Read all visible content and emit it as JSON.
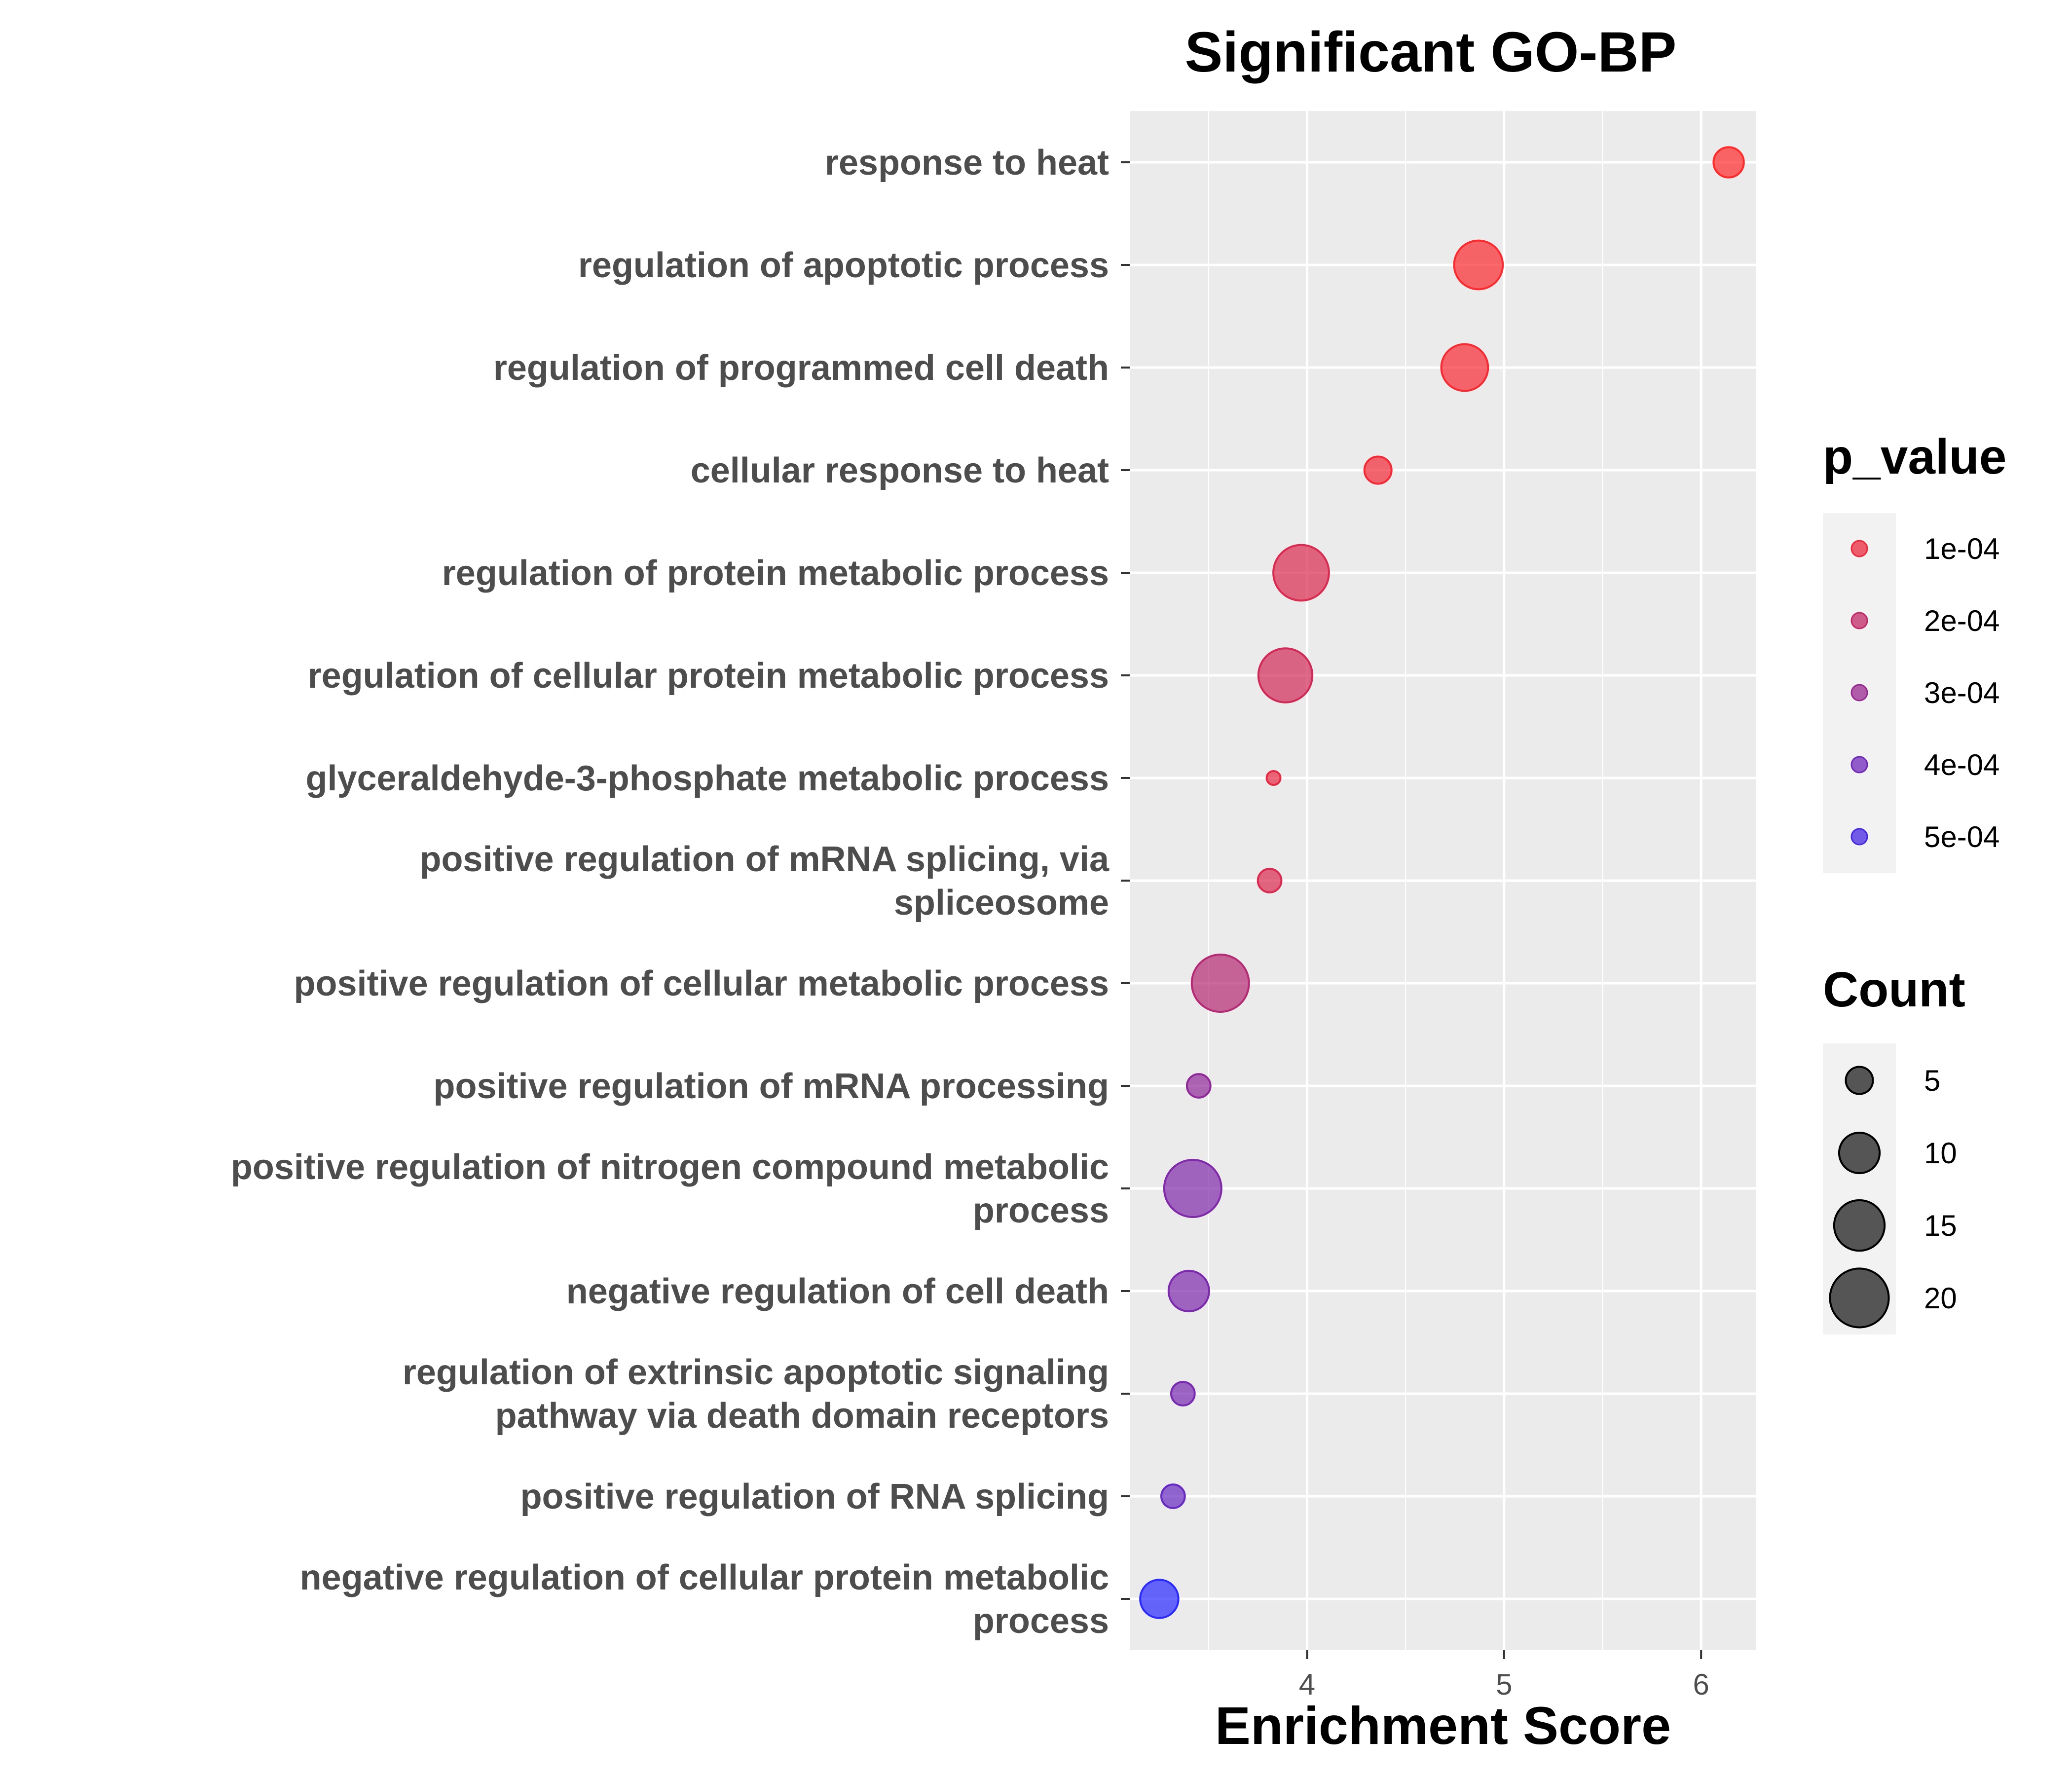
{
  "chart_data": {
    "type": "scatter",
    "title": "Significant GO-BP",
    "xlabel": "Enrichment Score",
    "ylabel": "",
    "xlim": [
      3.1,
      6.28
    ],
    "xticks": [
      4,
      5,
      6
    ],
    "grid": true,
    "legend_placement": "right",
    "categories": [
      "response to heat",
      "regulation of apoptotic process",
      "regulation of programmed cell death",
      "cellular response to heat",
      "regulation of protein metabolic process",
      "regulation of cellular protein metabolic process",
      "glyceraldehyde-3-phosphate metabolic process",
      "positive regulation of mRNA splicing, via spliceosome",
      "positive regulation of cellular metabolic process",
      "positive regulation of mRNA processing",
      "positive regulation of nitrogen compound metabolic process",
      "negative regulation of cell death",
      "regulation of extrinsic apoptotic signaling pathway via death domain receptors",
      "positive regulation of RNA splicing",
      "negative regulation of cellular protein metabolic process"
    ],
    "category_lines": [
      [
        "response to heat"
      ],
      [
        "regulation of apoptotic process"
      ],
      [
        "regulation of programmed cell death"
      ],
      [
        "cellular response to heat"
      ],
      [
        "regulation of protein metabolic process"
      ],
      [
        "regulation of cellular protein metabolic process"
      ],
      [
        "glyceraldehyde-3-phosphate metabolic process"
      ],
      [
        "positive regulation of mRNA splicing, via",
        "spliceosome"
      ],
      [
        "positive regulation of cellular metabolic process"
      ],
      [
        "positive regulation of mRNA processing"
      ],
      [
        "positive regulation of nitrogen compound metabolic",
        "process"
      ],
      [
        "negative regulation of cell death"
      ],
      [
        "regulation of extrinsic apoptotic signaling",
        "pathway via death domain receptors"
      ],
      [
        "positive regulation of RNA splicing"
      ],
      [
        "negative regulation of cellular protein metabolic",
        "process"
      ]
    ],
    "enrichment_score": [
      6.14,
      4.87,
      4.8,
      4.36,
      3.97,
      3.89,
      3.83,
      3.81,
      3.56,
      3.45,
      3.42,
      3.4,
      3.37,
      3.32,
      3.25
    ],
    "count": [
      6,
      14,
      13,
      5,
      18,
      17,
      2,
      4,
      19,
      4,
      19,
      10,
      4,
      4,
      9
    ],
    "p_value": [
      5e-05,
      6e-05,
      7e-05,
      8e-05,
      0.00014,
      0.00016,
      0.00011,
      0.00014,
      0.00023,
      0.00032,
      0.00036,
      0.00037,
      0.00038,
      0.00042,
      0.00057
    ],
    "color_legend": {
      "title": "p_value",
      "labels": [
        "1e-04",
        "2e-04",
        "3e-04",
        "4e-04",
        "5e-04"
      ],
      "values": [
        0.0001,
        0.0002,
        0.0003,
        0.0004,
        0.0005
      ],
      "low_color": "#FF2A2A",
      "high_color": "#2A2AFF"
    },
    "size_legend": {
      "title": "Count",
      "labels": [
        "5",
        "10",
        "15",
        "20"
      ],
      "values": [
        5,
        10,
        15,
        20
      ],
      "color": "#000000"
    },
    "panel_background": "#EBEBEB",
    "grid_color": "#FFFFFF"
  }
}
